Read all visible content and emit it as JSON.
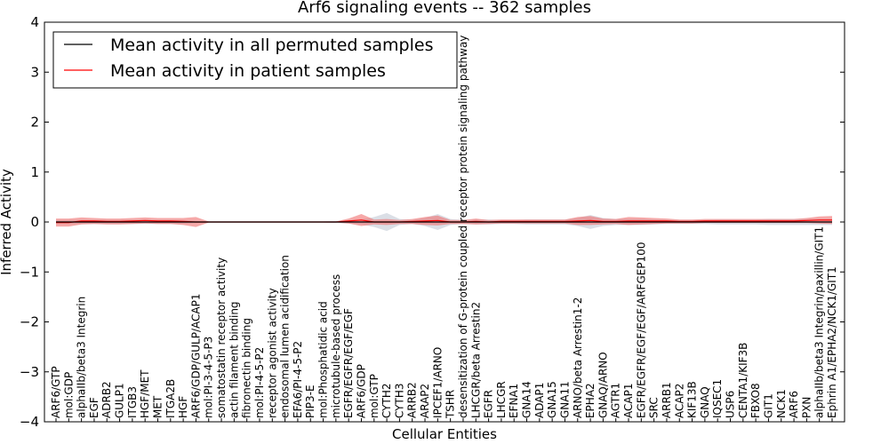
{
  "chart_data": {
    "type": "line",
    "title": "Arf6 signaling events -- 362 samples",
    "xlabel": "Cellular Entities",
    "ylabel": "Inferred Activity",
    "ylim": [
      -4,
      4
    ],
    "yticks": [
      "4",
      "3",
      "2",
      "1",
      "0",
      "−1",
      "−2",
      "−3",
      "−4"
    ],
    "legend_position": "top-left",
    "categories": [
      "ARF6/GTP",
      "mol:GDP",
      "alphaIIb/beta3 Integrin",
      "EGF",
      "ADRB2",
      "GULP1",
      "ITGB3",
      "HGF/MET",
      "MET",
      "ITGA2B",
      "HGF",
      "ARF6/GDP/GULP/ACAP1",
      "mol:PI-3-4-5-P3",
      "somatostatin receptor activity",
      "actin filament binding",
      "fibronectin binding",
      "mol:PI-4-5-P2",
      "receptor agonist activity",
      "endosomal lumen acidification",
      "EFA6/PI-4-5-P2",
      "PIP3-E",
      "mol:Phosphatidic acid",
      "microtubule-based process",
      "EGFR/EGFR/EGF/EGF",
      "ARF6/GDP",
      "mol:GTP",
      "CYTH2",
      "CYTH3",
      "ARRB2",
      "ARAP2",
      "IPCEF1/ARNO",
      "TSHR",
      "desensitization of G-protein coupled receptor protein signaling pathway",
      "LHCGR/beta Arrestin2",
      "EGFR",
      "LHCGR",
      "EFNA1",
      "GNA14",
      "ADAP1",
      "GNA15",
      "GNA11",
      "ARNO/beta Arrestin1-2",
      "EPHA2",
      "GNAQ/ARNO",
      "AGTR1",
      "ACAP1",
      "EGFR/EGFR/EGF/EGF/ARFGEP100",
      "SRC",
      "ARRB1",
      "ACAP2",
      "KIF13B",
      "GNAQ",
      "IQSEC1",
      "USP6",
      "CENTA1/KIF3B",
      "FBXO8",
      "GIT1",
      "NCK1",
      "ARF6",
      "PXN",
      "alphaIIb/beta3 Integrin/paxillin/GIT1",
      "Ephrin A1/EPHA2/NCK1/GIT1"
    ],
    "series": [
      {
        "name": "Mean activity in all permuted samples",
        "color": "#000000",
        "values": [
          0,
          0,
          0,
          0,
          0,
          0,
          0,
          0,
          0,
          0,
          0,
          0,
          0,
          0,
          0,
          0,
          0,
          0,
          0,
          0,
          0,
          0,
          0,
          0,
          0,
          0,
          0,
          0,
          0,
          0,
          0,
          0,
          0,
          0,
          0,
          0,
          0,
          0,
          0,
          0,
          0,
          0,
          0,
          0,
          0,
          0,
          0,
          0,
          0,
          0,
          0,
          0,
          0,
          0,
          0,
          0,
          0,
          0,
          0,
          0,
          0,
          0
        ],
        "band_half_width": [
          0.04,
          0.04,
          0.04,
          0.04,
          0.04,
          0.04,
          0.04,
          0.04,
          0.04,
          0.04,
          0.04,
          0.02,
          0.01,
          0.01,
          0.01,
          0.01,
          0.01,
          0.01,
          0.01,
          0.01,
          0.01,
          0.01,
          0.02,
          0.03,
          0.05,
          0.1,
          0.18,
          0.06,
          0.04,
          0.08,
          0.16,
          0.06,
          0.04,
          0.05,
          0.05,
          0.04,
          0.04,
          0.05,
          0.05,
          0.05,
          0.05,
          0.08,
          0.14,
          0.08,
          0.06,
          0.06,
          0.06,
          0.05,
          0.04,
          0.04,
          0.04,
          0.04,
          0.05,
          0.05,
          0.05,
          0.05,
          0.06,
          0.06,
          0.06,
          0.06,
          0.06,
          0.06
        ],
        "band_color": "#b0b8c8"
      },
      {
        "name": "Mean activity in patient samples",
        "color": "#ff0000",
        "values": [
          -0.01,
          -0.01,
          0.02,
          0.02,
          0.01,
          0.01,
          0.02,
          0.03,
          0.02,
          0.02,
          0.01,
          0,
          0,
          0,
          0,
          0,
          0,
          0,
          0,
          0,
          0,
          0,
          0,
          0.02,
          0.04,
          0,
          0,
          0,
          0.01,
          0.02,
          0.03,
          0,
          0,
          0.01,
          0,
          0.01,
          0.01,
          0.01,
          0.01,
          0.01,
          0.01,
          0.02,
          0.03,
          0.01,
          0.01,
          0.02,
          0.02,
          0.02,
          0.02,
          0.01,
          0.01,
          0.02,
          0.02,
          0.02,
          0.02,
          0.02,
          0.02,
          0.02,
          0.02,
          0.03,
          0.04,
          0.04
        ],
        "band_half_width": [
          0.08,
          0.08,
          0.07,
          0.06,
          0.06,
          0.06,
          0.06,
          0.06,
          0.06,
          0.06,
          0.07,
          0.1,
          0.01,
          0.01,
          0.01,
          0.01,
          0.01,
          0.01,
          0.01,
          0.01,
          0.01,
          0.01,
          0.01,
          0.05,
          0.12,
          0.05,
          0.06,
          0.04,
          0.05,
          0.08,
          0.1,
          0.04,
          0.04,
          0.06,
          0.04,
          0.04,
          0.04,
          0.04,
          0.04,
          0.04,
          0.04,
          0.08,
          0.09,
          0.06,
          0.05,
          0.08,
          0.07,
          0.06,
          0.05,
          0.04,
          0.04,
          0.04,
          0.04,
          0.04,
          0.04,
          0.04,
          0.04,
          0.04,
          0.04,
          0.05,
          0.07,
          0.08
        ],
        "band_color": "#f07070"
      }
    ]
  }
}
